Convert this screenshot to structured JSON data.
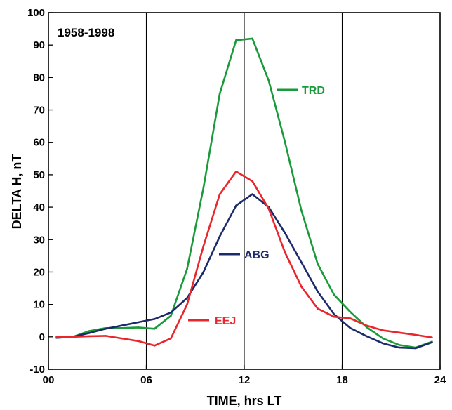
{
  "chart_data": {
    "type": "line",
    "title": "",
    "annotation": "1958-1998",
    "xlabel": "TIME, hrs LT",
    "ylabel": "DELTA H, nT",
    "xlim": [
      0,
      24
    ],
    "ylim": [
      -10,
      100
    ],
    "x_ticks": [
      0,
      6,
      12,
      18,
      24
    ],
    "x_tick_labels": [
      "00",
      "06",
      "12",
      "18",
      "24"
    ],
    "y_ticks": [
      -10,
      0,
      10,
      20,
      30,
      40,
      50,
      60,
      70,
      80,
      90,
      100
    ],
    "y_tick_labels": [
      "-10",
      "0",
      "10",
      "20",
      "30",
      "40",
      "50",
      "60",
      "70",
      "80",
      "90",
      "100"
    ],
    "grid": "vertical lines at 06, 12, 18",
    "series": [
      {
        "name": "TRD",
        "color": "#1a9a3a",
        "x": [
          0.5,
          1.5,
          2.5,
          3.5,
          4.5,
          5.5,
          6.5,
          7.5,
          8.5,
          9.5,
          10.5,
          11.5,
          12.5,
          13.5,
          14.5,
          15.5,
          16.5,
          17.5,
          18.5,
          19.5,
          20.5,
          21.5,
          22.5,
          23.5
        ],
        "values": [
          -0.3,
          0,
          1.8,
          2.7,
          2.7,
          2.9,
          2.5,
          6.5,
          21,
          46,
          75,
          91.5,
          92,
          79,
          60,
          39,
          22.5,
          13,
          7.7,
          3,
          -0.5,
          -2.5,
          -3.3,
          -1.5
        ]
      },
      {
        "name": "ABG",
        "color": "#1b2a6b",
        "x": [
          0.5,
          1.5,
          2.5,
          3.5,
          4.5,
          5.5,
          6.5,
          7.5,
          8.5,
          9.5,
          10.5,
          11.5,
          12.5,
          13.5,
          14.5,
          15.5,
          16.5,
          17.5,
          18.5,
          19.5,
          20.5,
          21.5,
          22.5,
          23.5
        ],
        "values": [
          -0.3,
          0,
          1.2,
          2.5,
          3.5,
          4.5,
          5.5,
          7.5,
          12,
          20,
          31,
          40.5,
          44,
          40,
          32,
          23,
          14,
          7,
          2.7,
          0.2,
          -2,
          -3.3,
          -3.5,
          -1.7
        ]
      },
      {
        "name": "EEJ",
        "color": "#e8262b",
        "x": [
          0.5,
          1.5,
          2.5,
          3.5,
          4.5,
          5.5,
          6.5,
          7.5,
          8.5,
          9.5,
          10.5,
          11.5,
          12.5,
          13.5,
          14.5,
          15.5,
          16.5,
          17.5,
          18.5,
          19.5,
          20.5,
          21.5,
          22.5,
          23.5
        ],
        "values": [
          0,
          0,
          0.2,
          0.3,
          -0.5,
          -1.3,
          -2.7,
          -0.5,
          10,
          28,
          44,
          51,
          48,
          39.5,
          26,
          15.5,
          8.7,
          6.2,
          5.7,
          3.5,
          2,
          1.3,
          0.6,
          -0.2
        ]
      }
    ],
    "series_labels": [
      {
        "name": "TRD",
        "line_color": "#1a9a3a"
      },
      {
        "name": "ABG",
        "line_color": "#1b2a6b"
      },
      {
        "name": "EEJ",
        "line_color": "#e8262b"
      }
    ]
  }
}
